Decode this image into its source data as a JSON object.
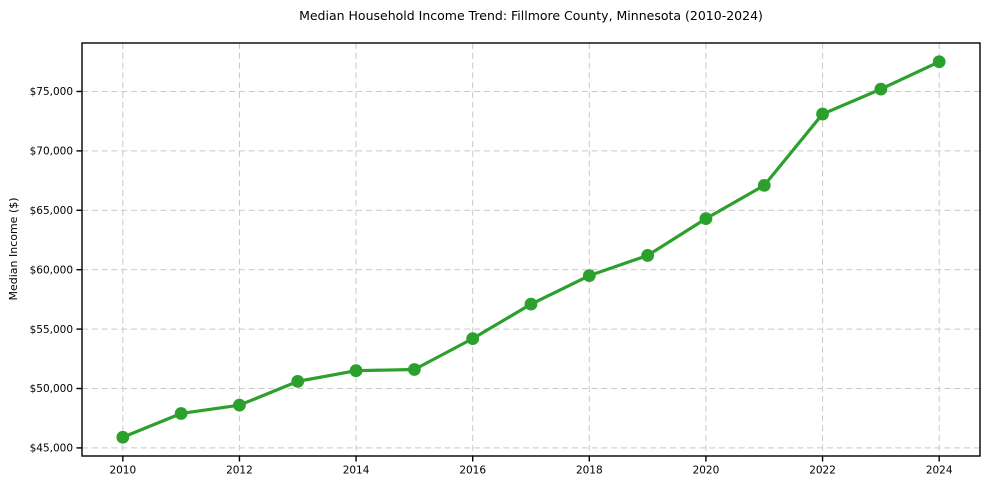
{
  "chart_data": {
    "type": "line",
    "title": "Median Household Income Trend: Fillmore County, Minnesota (2010-2024)",
    "xlabel": "",
    "ylabel": "Median Income ($)",
    "x": [
      2010,
      2011,
      2012,
      2013,
      2014,
      2015,
      2016,
      2017,
      2018,
      2019,
      2020,
      2021,
      2022,
      2023,
      2024
    ],
    "values": [
      45900,
      47900,
      48600,
      50600,
      51500,
      51600,
      54200,
      57100,
      59500,
      61200,
      64300,
      67100,
      73100,
      75200,
      77500
    ],
    "xlim": [
      2009.3,
      2024.7
    ],
    "ylim": [
      44320,
      79080
    ],
    "xticks": [
      2010,
      2012,
      2014,
      2016,
      2018,
      2020,
      2022,
      2024
    ],
    "xtick_labels": [
      "2010",
      "2012",
      "2014",
      "2016",
      "2018",
      "2020",
      "2022",
      "2024"
    ],
    "yticks": [
      45000,
      50000,
      55000,
      60000,
      65000,
      70000,
      75000
    ],
    "ytick_labels": [
      "$45,000",
      "$50,000",
      "$55,000",
      "$60,000",
      "$65,000",
      "$70,000",
      "$75,000"
    ],
    "grid": true,
    "grid_style": "dashed",
    "legend_position": "none",
    "colors": {
      "line": "#2ca02c",
      "marker": "#2ca02c",
      "grid": "#c9c9c9",
      "spine": "#000000",
      "background": "#ffffff"
    }
  }
}
